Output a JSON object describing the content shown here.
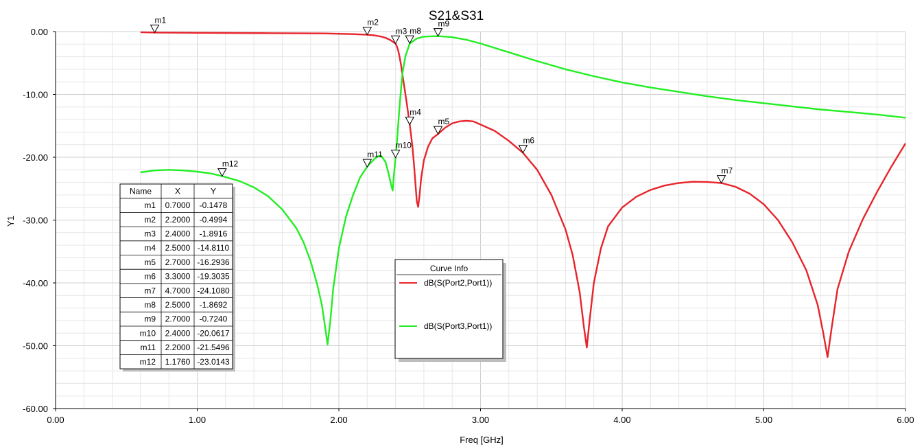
{
  "chart_data": {
    "type": "line",
    "title": "S21&S31",
    "xlabel": "Freq [GHz]",
    "ylabel": "Y1",
    "xlim": [
      0,
      6
    ],
    "ylim": [
      -60,
      0
    ],
    "x_ticks": [
      "0.00",
      "1.00",
      "2.00",
      "3.00",
      "4.00",
      "5.00",
      "6.00"
    ],
    "y_ticks": [
      "0.00",
      "-10.00",
      "-20.00",
      "-30.00",
      "-40.00",
      "-50.00",
      "-60.00"
    ],
    "grid": true,
    "legend_title": "Curve Info",
    "series": [
      {
        "name": "dB(S(Port2,Port1))",
        "color": "#e8232a",
        "points": [
          [
            0.6,
            -0.1
          ],
          [
            0.7,
            -0.15
          ],
          [
            1.0,
            -0.2
          ],
          [
            1.5,
            -0.25
          ],
          [
            1.9,
            -0.3
          ],
          [
            2.1,
            -0.4
          ],
          [
            2.2,
            -0.5
          ],
          [
            2.25,
            -0.6
          ],
          [
            2.3,
            -0.8
          ],
          [
            2.33,
            -1.0
          ],
          [
            2.36,
            -1.3
          ],
          [
            2.38,
            -1.6
          ],
          [
            2.4,
            -1.9
          ],
          [
            2.41,
            -2.4
          ],
          [
            2.42,
            -3.1
          ],
          [
            2.43,
            -4.2
          ],
          [
            2.44,
            -5.5
          ],
          [
            2.45,
            -7.0
          ],
          [
            2.46,
            -8.5
          ],
          [
            2.48,
            -11.5
          ],
          [
            2.5,
            -14.8
          ],
          [
            2.51,
            -16.5
          ],
          [
            2.52,
            -18.5
          ],
          [
            2.53,
            -21.0
          ],
          [
            2.54,
            -24.0
          ],
          [
            2.55,
            -27.0
          ],
          [
            2.56,
            -27.9
          ],
          [
            2.57,
            -26.0
          ],
          [
            2.58,
            -23.5
          ],
          [
            2.6,
            -20.5
          ],
          [
            2.63,
            -18.3
          ],
          [
            2.66,
            -17.0
          ],
          [
            2.7,
            -16.3
          ],
          [
            2.75,
            -15.3
          ],
          [
            2.8,
            -14.6
          ],
          [
            2.85,
            -14.3
          ],
          [
            2.9,
            -14.2
          ],
          [
            2.95,
            -14.3
          ],
          [
            3.0,
            -14.8
          ],
          [
            3.1,
            -15.8
          ],
          [
            3.2,
            -17.4
          ],
          [
            3.3,
            -19.3
          ],
          [
            3.4,
            -22.0
          ],
          [
            3.5,
            -26.0
          ],
          [
            3.6,
            -31.5
          ],
          [
            3.65,
            -35.5
          ],
          [
            3.7,
            -41.5
          ],
          [
            3.73,
            -47.0
          ],
          [
            3.75,
            -50.3
          ],
          [
            3.77,
            -46.0
          ],
          [
            3.8,
            -40.0
          ],
          [
            3.85,
            -34.5
          ],
          [
            3.9,
            -31.0
          ],
          [
            4.0,
            -28.0
          ],
          [
            4.1,
            -26.3
          ],
          [
            4.2,
            -25.2
          ],
          [
            4.3,
            -24.5
          ],
          [
            4.4,
            -24.1
          ],
          [
            4.5,
            -23.9
          ],
          [
            4.6,
            -23.95
          ],
          [
            4.7,
            -24.1
          ],
          [
            4.8,
            -24.7
          ],
          [
            4.9,
            -25.8
          ],
          [
            5.0,
            -27.5
          ],
          [
            5.1,
            -30.0
          ],
          [
            5.2,
            -33.5
          ],
          [
            5.3,
            -38.0
          ],
          [
            5.38,
            -43.5
          ],
          [
            5.42,
            -48.0
          ],
          [
            5.45,
            -51.8
          ],
          [
            5.48,
            -47.0
          ],
          [
            5.52,
            -41.0
          ],
          [
            5.6,
            -35.0
          ],
          [
            5.7,
            -29.8
          ],
          [
            5.8,
            -25.5
          ],
          [
            5.9,
            -21.5
          ],
          [
            6.0,
            -17.8
          ]
        ]
      },
      {
        "name": "dB(S(Port3,Port1))",
        "color": "#22ee22",
        "points": [
          [
            0.6,
            -22.4
          ],
          [
            0.7,
            -22.1
          ],
          [
            0.8,
            -22.0
          ],
          [
            0.9,
            -22.1
          ],
          [
            1.0,
            -22.3
          ],
          [
            1.1,
            -22.6
          ],
          [
            1.176,
            -23.0
          ],
          [
            1.3,
            -23.8
          ],
          [
            1.4,
            -24.8
          ],
          [
            1.5,
            -26.2
          ],
          [
            1.6,
            -28.3
          ],
          [
            1.7,
            -31.3
          ],
          [
            1.75,
            -33.5
          ],
          [
            1.8,
            -36.5
          ],
          [
            1.85,
            -40.5
          ],
          [
            1.88,
            -43.5
          ],
          [
            1.9,
            -46.5
          ],
          [
            1.92,
            -49.8
          ],
          [
            1.94,
            -46.0
          ],
          [
            1.96,
            -41.0
          ],
          [
            2.0,
            -34.5
          ],
          [
            2.05,
            -29.5
          ],
          [
            2.1,
            -26.0
          ],
          [
            2.15,
            -23.2
          ],
          [
            2.2,
            -21.5
          ],
          [
            2.25,
            -20.3
          ],
          [
            2.28,
            -19.8
          ],
          [
            2.3,
            -19.8
          ],
          [
            2.33,
            -20.8
          ],
          [
            2.35,
            -22.5
          ],
          [
            2.37,
            -24.5
          ],
          [
            2.38,
            -25.3
          ],
          [
            2.39,
            -22.5
          ],
          [
            2.4,
            -20.1
          ],
          [
            2.41,
            -17.5
          ],
          [
            2.42,
            -14.5
          ],
          [
            2.43,
            -11.5
          ],
          [
            2.44,
            -8.8
          ],
          [
            2.45,
            -6.5
          ],
          [
            2.47,
            -3.9
          ],
          [
            2.5,
            -1.9
          ],
          [
            2.55,
            -1.1
          ],
          [
            2.6,
            -0.8
          ],
          [
            2.7,
            -0.72
          ],
          [
            2.8,
            -0.9
          ],
          [
            2.9,
            -1.3
          ],
          [
            3.0,
            -1.9
          ],
          [
            3.2,
            -3.3
          ],
          [
            3.4,
            -4.7
          ],
          [
            3.6,
            -6.0
          ],
          [
            3.8,
            -7.1
          ],
          [
            4.0,
            -8.1
          ],
          [
            4.2,
            -8.9
          ],
          [
            4.4,
            -9.6
          ],
          [
            4.6,
            -10.3
          ],
          [
            4.8,
            -10.9
          ],
          [
            5.0,
            -11.4
          ],
          [
            5.2,
            -11.9
          ],
          [
            5.4,
            -12.4
          ],
          [
            5.6,
            -12.8
          ],
          [
            5.8,
            -13.2
          ],
          [
            6.0,
            -13.7
          ]
        ]
      }
    ],
    "markers": [
      {
        "name": "m1",
        "x": 0.7,
        "y": -0.1478,
        "series": 0
      },
      {
        "name": "m2",
        "x": 2.2,
        "y": -0.4994,
        "series": 0
      },
      {
        "name": "m3",
        "x": 2.4,
        "y": -1.8916,
        "series": 0
      },
      {
        "name": "m4",
        "x": 2.5,
        "y": -14.811,
        "series": 0
      },
      {
        "name": "m5",
        "x": 2.7,
        "y": -16.2936,
        "series": 0
      },
      {
        "name": "m6",
        "x": 3.3,
        "y": -19.3035,
        "series": 0
      },
      {
        "name": "m7",
        "x": 4.7,
        "y": -24.108,
        "series": 0
      },
      {
        "name": "m8",
        "x": 2.5,
        "y": -1.8692,
        "series": 1
      },
      {
        "name": "m9",
        "x": 2.7,
        "y": -0.724,
        "series": 1
      },
      {
        "name": "m10",
        "x": 2.4,
        "y": -20.0617,
        "series": 1
      },
      {
        "name": "m11",
        "x": 2.2,
        "y": -21.5496,
        "series": 1
      },
      {
        "name": "m12",
        "x": 1.176,
        "y": -23.0143,
        "series": 1
      }
    ],
    "marker_table": {
      "headers": [
        "Name",
        "X",
        "Y"
      ],
      "rows": [
        [
          "m1",
          "0.7000",
          "-0.1478"
        ],
        [
          "m2",
          "2.2000",
          "-0.4994"
        ],
        [
          "m3",
          "2.4000",
          "-1.8916"
        ],
        [
          "m4",
          "2.5000",
          "-14.8110"
        ],
        [
          "m5",
          "2.7000",
          "-16.2936"
        ],
        [
          "m6",
          "3.3000",
          "-19.3035"
        ],
        [
          "m7",
          "4.7000",
          "-24.1080"
        ],
        [
          "m8",
          "2.5000",
          "-1.8692"
        ],
        [
          "m9",
          "2.7000",
          "-0.7240"
        ],
        [
          "m10",
          "2.4000",
          "-20.0617"
        ],
        [
          "m11",
          "2.2000",
          "-21.5496"
        ],
        [
          "m12",
          "1.1760",
          "-23.0143"
        ]
      ]
    }
  }
}
